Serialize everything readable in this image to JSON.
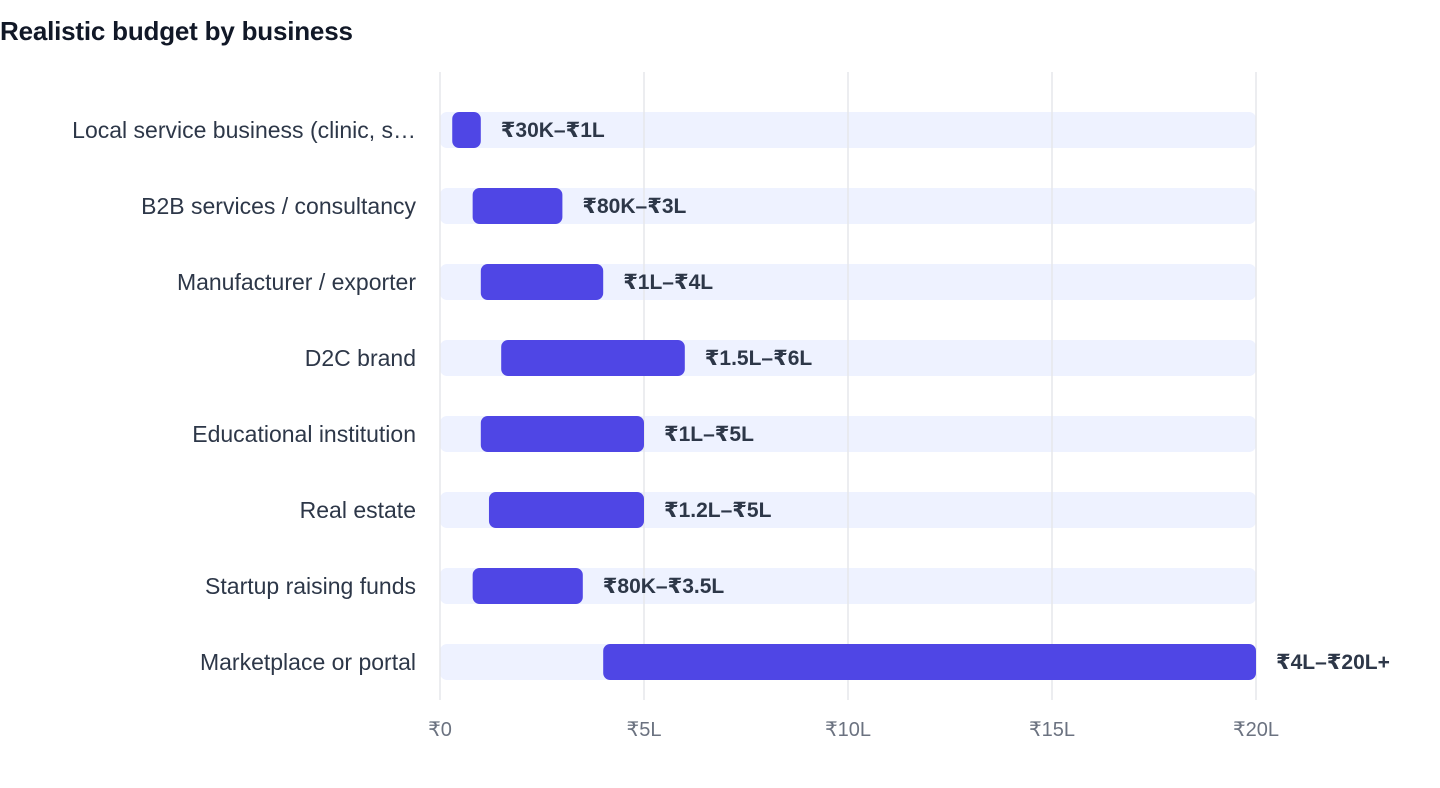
{
  "chart_data": {
    "type": "bar",
    "orientation": "horizontal",
    "title": "Realistic budget by business",
    "xlabel": "",
    "ylabel": "",
    "unit": "₹ lakh",
    "xlim": [
      0,
      20
    ],
    "x_ticks": [
      {
        "value": 0,
        "label": "₹0"
      },
      {
        "value": 5,
        "label": "₹5L"
      },
      {
        "value": 10,
        "label": "₹10L"
      },
      {
        "value": 15,
        "label": "₹15L"
      },
      {
        "value": 20,
        "label": "₹20L"
      }
    ],
    "grid": true,
    "legend": "none",
    "colors": {
      "bar": "#4f46e5",
      "track": "#eef2ff",
      "grid": "#e5e7eb",
      "category_text": "#2d3748",
      "value_text": "#2d3748",
      "tick_text": "#6b7280",
      "title_text": "#111827"
    },
    "categories": [
      "Local service business (clinic, s…",
      "B2B services / consultancy",
      "Manufacturer / exporter",
      "D2C brand",
      "Educational institution",
      "Real estate",
      "Startup raising funds",
      "Marketplace or portal"
    ],
    "ranges": [
      {
        "low": 0.3,
        "high": 1,
        "label": "₹30K–₹1L"
      },
      {
        "low": 0.8,
        "high": 3,
        "label": "₹80K–₹3L"
      },
      {
        "low": 1,
        "high": 4,
        "label": "₹1L–₹4L"
      },
      {
        "low": 1.5,
        "high": 6,
        "label": "₹1.5L–₹6L"
      },
      {
        "low": 1,
        "high": 5,
        "label": "₹1L–₹5L"
      },
      {
        "low": 1.2,
        "high": 5,
        "label": "₹1.2L–₹5L"
      },
      {
        "low": 0.8,
        "high": 3.5,
        "label": "₹80K–₹3.5L"
      },
      {
        "low": 4,
        "high": 20,
        "label": "₹4L–₹20L+"
      }
    ]
  }
}
